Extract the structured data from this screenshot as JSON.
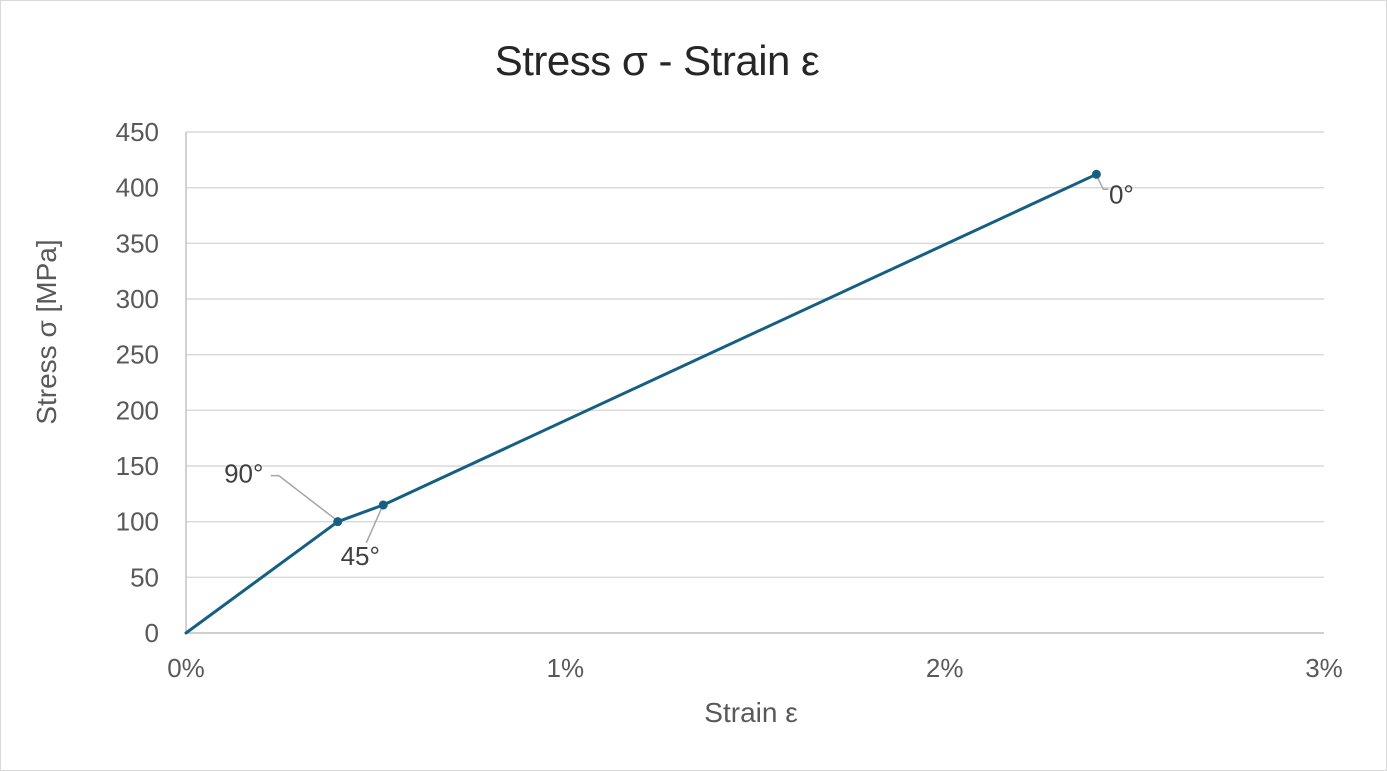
{
  "chart_data": {
    "type": "line",
    "title": "Stress σ - Strain ε",
    "xlabel": "Strain ε",
    "ylabel": "Stress σ [MPa]",
    "x_unit": "percent strain",
    "y_unit": "MPa",
    "xlim": [
      0,
      3
    ],
    "ylim": [
      0,
      450
    ],
    "grid": "horizontal",
    "legend": "none",
    "x_ticks": [
      {
        "value": 0,
        "label": "0%"
      },
      {
        "value": 1,
        "label": "1%"
      },
      {
        "value": 2,
        "label": "2%"
      },
      {
        "value": 3,
        "label": "3%"
      }
    ],
    "y_ticks": [
      {
        "value": 0,
        "label": "0"
      },
      {
        "value": 50,
        "label": "50"
      },
      {
        "value": 100,
        "label": "100"
      },
      {
        "value": 150,
        "label": "150"
      },
      {
        "value": 200,
        "label": "200"
      },
      {
        "value": 250,
        "label": "250"
      },
      {
        "value": 300,
        "label": "300"
      },
      {
        "value": 350,
        "label": "350"
      },
      {
        "value": 400,
        "label": "400"
      },
      {
        "value": 450,
        "label": "450"
      }
    ],
    "series": [
      {
        "color": "#156082",
        "marker": "circle",
        "points": [
          {
            "x": 0,
            "y": 0
          },
          {
            "x": 0.4,
            "y": 100,
            "label": "90°",
            "label_offset": [
              -94,
              -48
            ],
            "leader": [
              [
                -67,
                -46
              ],
              [
                -59,
                -46
              ],
              [
                -3,
                -3
              ]
            ]
          },
          {
            "x": 0.52,
            "y": 115,
            "label": "45°",
            "label_offset": [
              -23,
              51
            ],
            "leader": [
              [
                -17,
                38
              ],
              [
                -2,
                4
              ]
            ]
          },
          {
            "x": 2.4,
            "y": 412,
            "label": "0°",
            "label_offset": [
              25,
              20
            ],
            "leader": [
              [
                1,
                3
              ],
              [
                7,
                15
              ],
              [
                12,
                15
              ]
            ]
          }
        ]
      }
    ]
  },
  "colors": {
    "series_line": "#156082",
    "marker_fill": "#156082",
    "gridline": "#d9d9d9",
    "axis_line": "#bfbfbf",
    "tick_label_text": "#595959",
    "axis_title_text": "#595959",
    "chart_title_text": "#262626",
    "data_label_text": "#404040",
    "leader_line": "#a6a6a6",
    "background": "#ffffff",
    "chart_border": "#d9d9d9"
  }
}
